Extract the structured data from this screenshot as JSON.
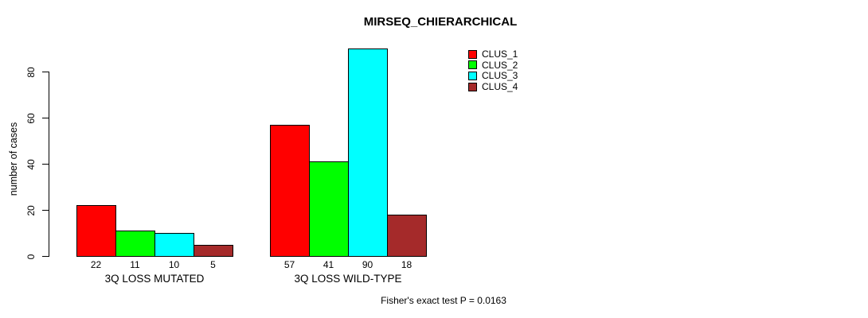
{
  "chart_data": {
    "type": "bar",
    "title": "MIRSEQ_CHIERARCHICAL",
    "categories": [
      "3Q LOSS MUTATED",
      "3Q LOSS WILD-TYPE"
    ],
    "series": [
      {
        "name": "CLUS_1",
        "color": "#FF0000",
        "values": [
          22,
          57
        ]
      },
      {
        "name": "CLUS_2",
        "color": "#00FF00",
        "values": [
          11,
          41
        ]
      },
      {
        "name": "CLUS_3",
        "color": "#00FFFF",
        "values": [
          10,
          90
        ]
      },
      {
        "name": "CLUS_4",
        "color": "#A52A2A",
        "values": [
          5,
          18
        ]
      }
    ],
    "ylabel": "number of cases",
    "xlabel": "",
    "yticks": [
      0,
      20,
      40,
      60,
      80
    ],
    "ylim": [
      0,
      92
    ],
    "bar_value_labels": true,
    "grid": false,
    "legend_position": "top-right",
    "axis_color": "#000000",
    "bar_border_color": "#000000",
    "annotation": "Fisher's exact test P = 0.0163"
  }
}
